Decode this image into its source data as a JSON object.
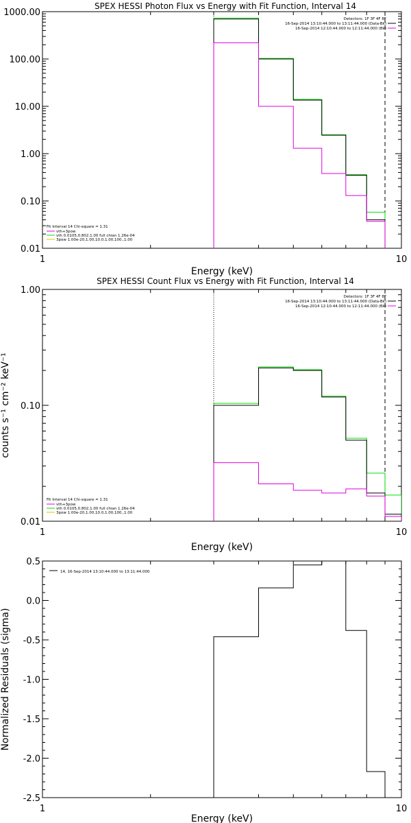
{
  "chart_data": [
    {
      "type": "line",
      "title": "SPEX HESSI Photon Flux vs Energy with Fit Function, Interval 14",
      "xlabel": "Energy (keV)",
      "ylabel": "",
      "xscale": "log",
      "yscale": "log",
      "xlim": [
        1,
        10
      ],
      "ylim": [
        0.01,
        1000
      ],
      "xtick_labels": [
        "1",
        "10"
      ],
      "ytick_labels": [
        "1000.00",
        "100.00",
        "10.00",
        "1.00",
        "0.10",
        "0.01"
      ],
      "ytick_values": [
        1000,
        100,
        10,
        1,
        0.1,
        0.01
      ],
      "bin_edges": [
        3.0,
        4.0,
        5.0,
        6.0,
        7.0,
        8.0,
        9.0
      ],
      "series": [
        {
          "color": "#000000",
          "values": [
            700,
            100,
            13.5,
            2.45,
            0.35,
            0.04
          ]
        },
        {
          "color": "#00e000",
          "values": [
            730,
            103,
            14,
            2.5,
            0.36,
            0.058
          ]
        },
        {
          "color": "#e000e0",
          "values": [
            220,
            10,
            1.3,
            0.38,
            0.13,
            0.037
          ]
        }
      ],
      "vlines": [
        {
          "x": 3.0,
          "style": "dotted"
        },
        {
          "x": 9.0,
          "style": "dashed"
        }
      ],
      "legend_top": {
        "header": "Detectors: 1F 3F 4F 8F",
        "rows": [
          {
            "text": "16-Sep-2014 13:10:44.000 to 13:11:44.000 (Data-Bk)",
            "color": "#000000"
          },
          {
            "text": "16-Sep-2014 12:10:44.000 to 12:11:44.000 (Bk)",
            "color": "#e000e0"
          }
        ]
      },
      "legend_bottom": {
        "header": "Fit Interval 14   Chi-square = 1.31",
        "rows": [
          {
            "text": "vth+3pow",
            "color": "#e000e0"
          },
          {
            "text": "vth 0.0105,0.802,1.00  full chian 1.26e-04",
            "color": "#00e000"
          },
          {
            "text": "3pow 1.00e-20,1.00,10.0,1.00,100.,1.00",
            "color": "#e0c000"
          }
        ]
      }
    },
    {
      "type": "line",
      "title": "SPEX HESSI Count Flux vs Energy with Fit Function, Interval 14",
      "xlabel": "Energy (keV)",
      "ylabel": "counts s⁻¹ cm⁻² keV⁻¹",
      "xscale": "log",
      "yscale": "log",
      "xlim": [
        1,
        10
      ],
      "ylim": [
        0.01,
        1
      ],
      "xtick_labels": [
        "1",
        "10"
      ],
      "ytick_labels": [
        "1.00",
        "0.10",
        "0.01"
      ],
      "ytick_values": [
        1,
        0.1,
        0.01
      ],
      "bin_edges": [
        3.0,
        4.0,
        5.0,
        6.0,
        7.0,
        8.0,
        9.0,
        10.0
      ],
      "series": [
        {
          "color": "#000000",
          "values": [
            0.1,
            0.21,
            0.2,
            0.118,
            0.05,
            0.0175,
            0.0115
          ]
        },
        {
          "color": "#00e000",
          "values": [
            0.104,
            0.215,
            0.203,
            0.12,
            0.052,
            0.026,
            0.0168
          ]
        },
        {
          "color": "#e000e0",
          "values": [
            0.032,
            0.021,
            0.0185,
            0.0175,
            0.019,
            0.0165,
            0.011
          ]
        }
      ],
      "vlines": [
        {
          "x": 3.0,
          "style": "dotted"
        },
        {
          "x": 9.0,
          "style": "dashed"
        }
      ],
      "legend_top": {
        "header": "Detectors: 1F 3F 4F 8F",
        "rows": [
          {
            "text": "16-Sep-2014 13:10:44.000 to 13:11:44.000 (Data-Bk)",
            "color": "#000000"
          },
          {
            "text": "16-Sep-2014 12:10:44.000 to 12:11:44.000 (Bk)",
            "color": "#e000e0"
          }
        ]
      },
      "legend_bottom": {
        "header": "Fit Interval 14   Chi-square = 1.31",
        "rows": [
          {
            "text": "vth+3pow",
            "color": "#e000e0"
          },
          {
            "text": "vth 0.0105,0.802,1.00  full chian 1.26e-04",
            "color": "#00e000"
          },
          {
            "text": "3pow 1.00e-20,1.00,10.0,1.00,100.,1.00",
            "color": "#e0c000"
          }
        ]
      }
    },
    {
      "type": "line",
      "title": "",
      "xlabel": "Energy (keV)",
      "ylabel": "Normalized Residuals (sigma)",
      "xscale": "log",
      "yscale": "linear",
      "xlim": [
        1,
        10
      ],
      "ylim": [
        -2.5,
        0.5
      ],
      "xtick_labels": [
        "1",
        "10"
      ],
      "ytick_labels": [
        "0.5",
        "0.0",
        "-0.5",
        "-1.0",
        "-1.5",
        "-2.0",
        "-2.5"
      ],
      "ytick_values": [
        0.5,
        0.0,
        -0.5,
        -1.0,
        -1.5,
        -2.0,
        -2.5
      ],
      "bin_edges": [
        3.0,
        4.0,
        5.0,
        6.0,
        7.0,
        8.0,
        9.0
      ],
      "series": [
        {
          "color": "#000000",
          "values": [
            -0.46,
            0.16,
            0.45,
            0.5,
            -0.38,
            -2.17
          ]
        }
      ],
      "vlines": [],
      "legend_top": {
        "header": "",
        "rows": [
          {
            "text": "14, 16-Sep-2014 13:10:44.000 to 13:11:44.000",
            "color": "#000000"
          }
        ]
      },
      "legend_bottom": null
    }
  ]
}
